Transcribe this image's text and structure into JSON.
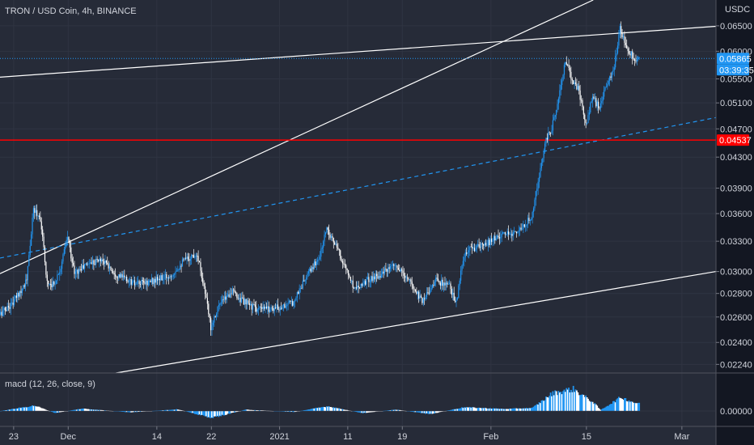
{
  "chart_data": {
    "type": "candlestick",
    "title": "TRON / USD Coin, 4h, BINANCE",
    "currency": "USDC",
    "y_ticks": [
      0.065,
      0.06,
      0.055,
      0.051,
      0.047,
      0.043,
      0.039,
      0.036,
      0.033,
      0.03,
      0.028,
      0.026,
      0.024,
      0.0224
    ],
    "y_tick_labels": [
      "0.06500",
      "0.06000",
      "0.05500",
      "0.05100",
      "0.04700",
      "0.04300",
      "0.03900",
      "0.03600",
      "0.03300",
      "0.03000",
      "0.02800",
      "0.02600",
      "0.02400",
      "0.02240"
    ],
    "y_scale": "log",
    "y_range": [
      0.0218,
      0.0705
    ],
    "x_range": [
      "2020-11-21",
      "2021-03-06"
    ],
    "x_tick_dates": [
      "2020-11-23",
      "2020-12-01",
      "2020-12-14",
      "2020-12-22",
      "2021-01-01",
      "2021-01-11",
      "2021-01-19",
      "2021-02-01",
      "2021-02-15",
      "2021-03-01"
    ],
    "x_tick_labels": [
      "23",
      "Dec",
      "14",
      "22",
      "2021",
      "11",
      "19",
      "Feb",
      "15",
      "Mar"
    ],
    "last_price": {
      "label": "0.05865",
      "value": 0.05865,
      "countdown": "03:39:35",
      "color": "#2196f3"
    },
    "support_level": {
      "label": "0.04537",
      "value": 0.04537,
      "color": "#ff0000"
    },
    "up_color": "#2196f3",
    "down_color": "#ffffff",
    "price_points": [
      [
        "2020-11-21",
        0.0262
      ],
      [
        "2020-11-23",
        0.0272
      ],
      [
        "2020-11-25",
        0.0292
      ],
      [
        "2020-11-26",
        0.0365
      ],
      [
        "2020-11-27",
        0.0355
      ],
      [
        "2020-11-28",
        0.029
      ],
      [
        "2020-11-29",
        0.0288
      ],
      [
        "2020-11-30",
        0.0305
      ],
      [
        "2020-12-01",
        0.0335
      ],
      [
        "2020-12-02",
        0.0298
      ],
      [
        "2020-12-04",
        0.0308
      ],
      [
        "2020-12-06",
        0.0312
      ],
      [
        "2020-12-08",
        0.0298
      ],
      [
        "2020-12-11",
        0.0288
      ],
      [
        "2020-12-14",
        0.0292
      ],
      [
        "2020-12-16",
        0.0296
      ],
      [
        "2020-12-18",
        0.031
      ],
      [
        "2020-12-20",
        0.0318
      ],
      [
        "2020-12-21",
        0.0286
      ],
      [
        "2020-12-22",
        0.0252
      ],
      [
        "2020-12-23",
        0.0268
      ],
      [
        "2020-12-25",
        0.0282
      ],
      [
        "2020-12-27",
        0.0272
      ],
      [
        "2020-12-29",
        0.0266
      ],
      [
        "2021-01-01",
        0.0268
      ],
      [
        "2021-01-03",
        0.0272
      ],
      [
        "2021-01-05",
        0.0295
      ],
      [
        "2021-01-07",
        0.0315
      ],
      [
        "2021-01-08",
        0.0345
      ],
      [
        "2021-01-10",
        0.0315
      ],
      [
        "2021-01-12",
        0.0285
      ],
      [
        "2021-01-14",
        0.0292
      ],
      [
        "2021-01-16",
        0.0298
      ],
      [
        "2021-01-18",
        0.0305
      ],
      [
        "2021-01-20",
        0.0292
      ],
      [
        "2021-01-22",
        0.0274
      ],
      [
        "2021-01-24",
        0.0292
      ],
      [
        "2021-01-26",
        0.0286
      ],
      [
        "2021-01-27",
        0.0272
      ],
      [
        "2021-01-28",
        0.0312
      ],
      [
        "2021-01-29",
        0.0322
      ],
      [
        "2021-01-31",
        0.0325
      ],
      [
        "2021-02-02",
        0.0335
      ],
      [
        "2021-02-04",
        0.0338
      ],
      [
        "2021-02-06",
        0.0345
      ],
      [
        "2021-02-07",
        0.0358
      ],
      [
        "2021-02-08",
        0.0395
      ],
      [
        "2021-02-09",
        0.045
      ],
      [
        "2021-02-10",
        0.047
      ],
      [
        "2021-02-11",
        0.052
      ],
      [
        "2021-02-12",
        0.058
      ],
      [
        "2021-02-13",
        0.055
      ],
      [
        "2021-02-14",
        0.053
      ],
      [
        "2021-02-15",
        0.0475
      ],
      [
        "2021-02-16",
        0.052
      ],
      [
        "2021-02-17",
        0.05
      ],
      [
        "2021-02-18",
        0.054
      ],
      [
        "2021-02-19",
        0.056
      ],
      [
        "2021-02-20",
        0.0645
      ],
      [
        "2021-02-21",
        0.061
      ],
      [
        "2021-02-22",
        0.05865
      ]
    ],
    "macd": {
      "label": "macd (12, 26, close, 9)",
      "zero_label": "0.00000",
      "points": [
        [
          "2020-11-21",
          0.0
        ],
        [
          "2020-11-26",
          0.8
        ],
        [
          "2020-11-29",
          -0.3
        ],
        [
          "2020-12-03",
          0.35
        ],
        [
          "2020-12-10",
          -0.2
        ],
        [
          "2020-12-17",
          0.25
        ],
        [
          "2020-12-22",
          -1.0
        ],
        [
          "2020-12-27",
          0.2
        ],
        [
          "2021-01-03",
          -0.15
        ],
        [
          "2021-01-08",
          0.7
        ],
        [
          "2021-01-13",
          -0.3
        ],
        [
          "2021-01-18",
          0.2
        ],
        [
          "2021-01-23",
          -0.45
        ],
        [
          "2021-01-28",
          0.55
        ],
        [
          "2021-02-03",
          0.3
        ],
        [
          "2021-02-07",
          0.45
        ],
        [
          "2021-02-10",
          2.6
        ],
        [
          "2021-02-13",
          3.2
        ],
        [
          "2021-02-16",
          1.2
        ],
        [
          "2021-02-17",
          0.15
        ],
        [
          "2021-02-20",
          2.0
        ],
        [
          "2021-02-22",
          1.2
        ]
      ]
    },
    "trend_lines": [
      {
        "style": "solid",
        "color": "#ffffff",
        "from": [
          "2020-11-21",
          0.0298
        ],
        "to": [
          "2021-02-16",
          0.0705
        ]
      },
      {
        "style": "solid",
        "color": "#ffffff",
        "from": [
          "2020-11-21",
          0.0553
        ],
        "to": [
          "2021-03-06",
          0.0649
        ]
      },
      {
        "style": "solid",
        "color": "#ffffff",
        "from": [
          "2020-12-08",
          0.0218
        ],
        "to": [
          "2021-03-06",
          0.03
        ]
      },
      {
        "style": "dashed",
        "color": "#2196f3",
        "from": [
          "2020-11-21",
          0.0313
        ],
        "to": [
          "2021-03-06",
          0.0487
        ]
      }
    ]
  }
}
